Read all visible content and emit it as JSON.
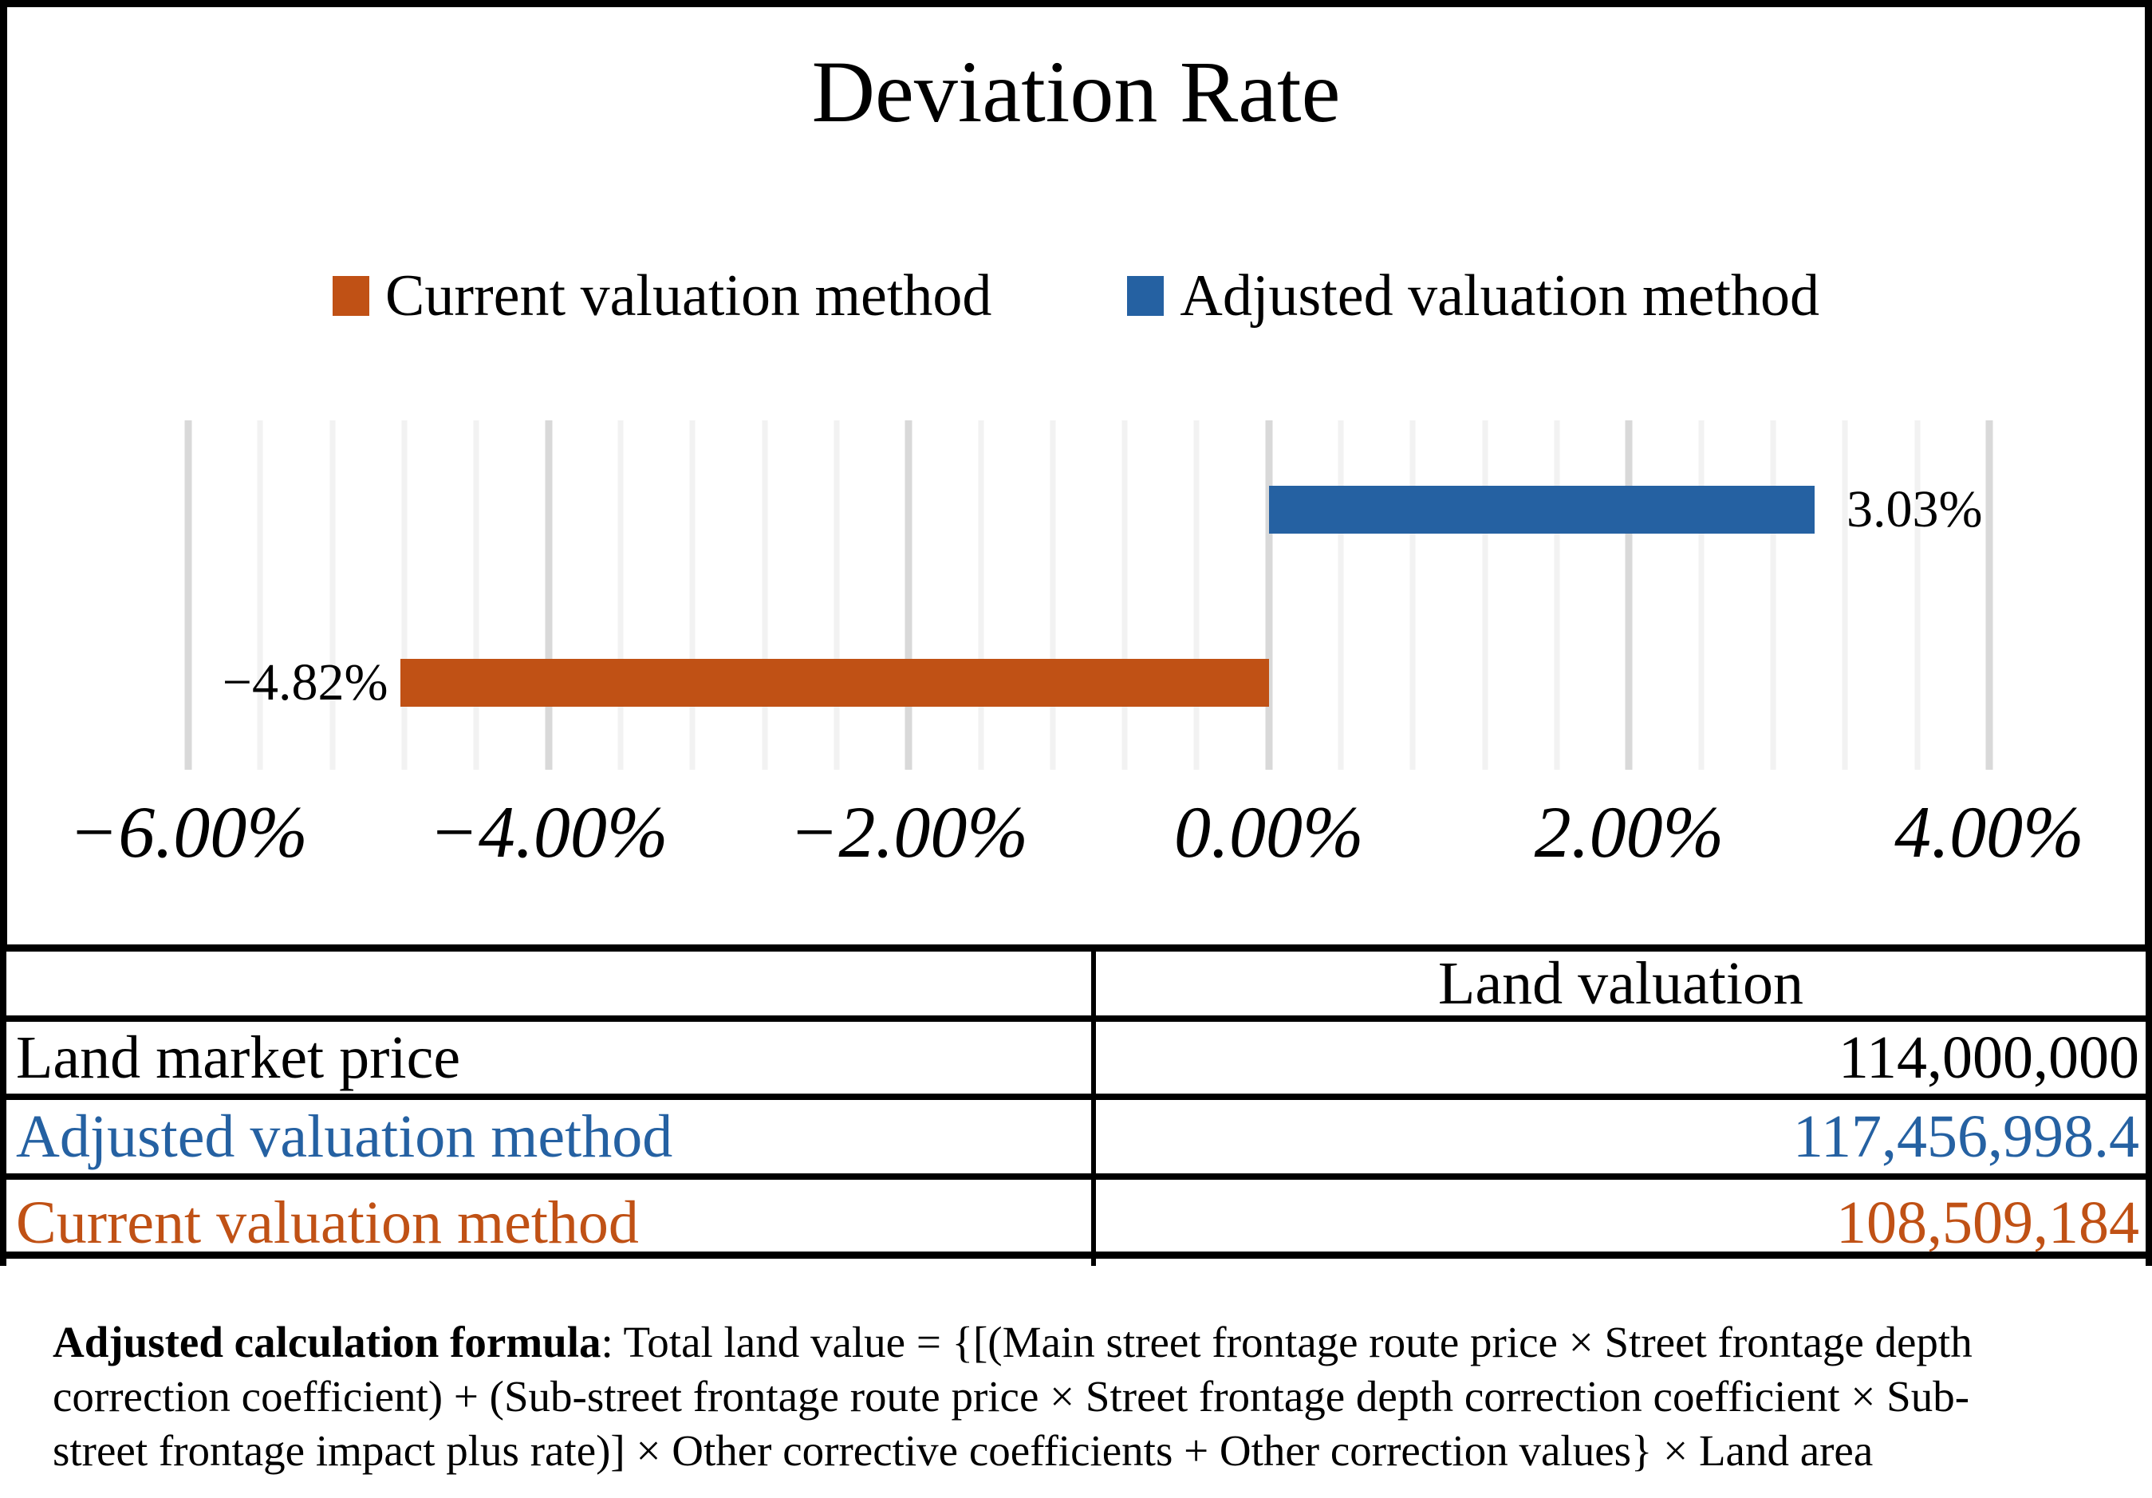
{
  "chart_data": {
    "type": "bar",
    "orientation": "horizontal",
    "title": "Deviation Rate",
    "series": [
      {
        "name": "Current valuation method",
        "value": -4.82,
        "data_label": "−4.82%",
        "color": "#C05115"
      },
      {
        "name": "Adjusted valuation method",
        "value": 3.03,
        "data_label": "3.03%",
        "color": "#2561A2"
      }
    ],
    "x_axis": {
      "min": -6,
      "max": 4,
      "major_unit": 2,
      "minor_unit": 0.4,
      "tick_values": [
        -6,
        -4,
        -2,
        0,
        2,
        4
      ],
      "tick_labels": [
        "−6.00%",
        "−4.00%",
        "−2.00%",
        "0.00%",
        "2.00%",
        "4.00%"
      ]
    },
    "legend_position": "top",
    "grid": {
      "minor_color": "#F2F2F2",
      "major_color": "#D9D9D9"
    }
  },
  "table": {
    "header": {
      "col1": "",
      "col2": "Land valuation"
    },
    "rows": [
      {
        "label": "Land market price",
        "value": "114,000,000",
        "color": "#000000"
      },
      {
        "label": "Adjusted valuation method",
        "value": "117,456,998.4",
        "color": "#2561A2"
      },
      {
        "label": "Current valuation method",
        "value": "108,509,184",
        "color": "#C05115"
      }
    ]
  },
  "formula": {
    "bold": "Adjusted calculation formula",
    "text": ": Total land value = {[(Main street frontage route price × Street frontage depth correction coefficient) + (Sub-street frontage route price × Street frontage depth correction coefficient × Sub-street frontage impact plus rate)] × Other corrective coefficients + Other correction values} × Land area"
  }
}
